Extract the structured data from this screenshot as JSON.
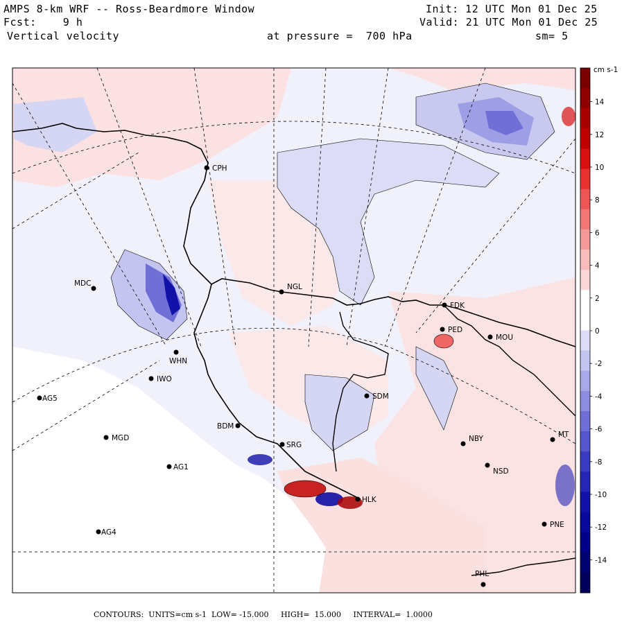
{
  "header": {
    "model_title": "AMPS 8-km WRF -- Ross-Beardmore Window",
    "init": "Init: 12 UTC Mon 01 Dec 25",
    "forecast": "Fcst:    9 h",
    "valid": "Valid: 21 UTC Mon 01 Dec 25",
    "variable": "Vertical velocity",
    "pressure": "at pressure =  700 hPa",
    "smoothing": "sm= 5"
  },
  "colorbar": {
    "units": "cm s-1",
    "tick_labels": [
      "14",
      "12",
      "10",
      "8",
      "6",
      "4",
      "2",
      "0",
      "-2",
      "-4",
      "-6",
      "-8",
      "-10",
      "-12",
      "-14"
    ],
    "colors_top_to_bottom": [
      "#7a0000",
      "#8e0000",
      "#a80000",
      "#c00000",
      "#d81010",
      "#e83030",
      "#ee5555",
      "#f27777",
      "#f59a9a",
      "#f8bcbc",
      "#fbd8d8",
      "#ffffff",
      "#ffffff",
      "#dcdcf6",
      "#c4c4f0",
      "#a9a9e8",
      "#8c8ce0",
      "#6f6fd6",
      "#5555cc",
      "#3b3bc2",
      "#2525b6",
      "#1212a8",
      "#08089a",
      "#000088",
      "#00006e",
      "#00005a"
    ]
  },
  "stations": [
    {
      "id": "CPH"
    },
    {
      "id": "NGL"
    },
    {
      "id": "MDC"
    },
    {
      "id": "FDK"
    },
    {
      "id": "PED"
    },
    {
      "id": "MOU"
    },
    {
      "id": "WHN"
    },
    {
      "id": "IWO"
    },
    {
      "id": "AG5"
    },
    {
      "id": "SDM"
    },
    {
      "id": "BDM"
    },
    {
      "id": "SRG"
    },
    {
      "id": "MGD"
    },
    {
      "id": "NBY"
    },
    {
      "id": "NSD"
    },
    {
      "id": "MT"
    },
    {
      "id": "AG1"
    },
    {
      "id": "HLK"
    },
    {
      "id": "PNE"
    },
    {
      "id": "AG4"
    },
    {
      "id": "PHL"
    }
  ],
  "footer": {
    "contours": "CONTOURS:  UNITS=cm s-1  LOW= -15.000     HIGH=  15.000     INTERVAL=  1.0000"
  }
}
